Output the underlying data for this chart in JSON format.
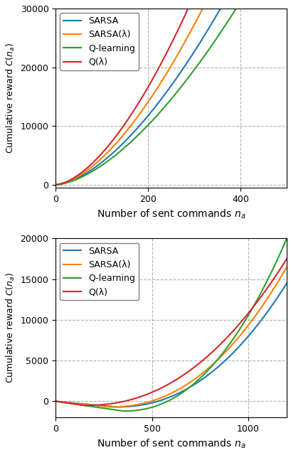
{
  "top": {
    "xlabel": "Number of sent commands $n_a$",
    "ylabel": "Cumulative reward $C(n_a)$",
    "xlim": [
      0,
      500
    ],
    "ylim": [
      -500,
      30000
    ],
    "yticks": [
      0,
      10000,
      20000,
      30000
    ],
    "xticks": [
      0,
      200,
      400
    ],
    "legend_labels": [
      "SARSA",
      "SARSA(λ)",
      "Q-learning",
      "Q(λ)"
    ],
    "colors": [
      "#1f77b4",
      "#ff7f0e",
      "#2ca02c",
      "#d62728"
    ],
    "x_end": 500,
    "top_sarsa": {
      "a": 2.2,
      "b": 1.62
    },
    "top_sarsa_lam": {
      "a": 2.5,
      "b": 1.63
    },
    "top_qlearn": {
      "a": 1.9,
      "b": 1.62
    },
    "top_qlam": {
      "a": 2.8,
      "b": 1.64
    }
  },
  "bottom": {
    "xlabel": "Number of sent commands $n_a$",
    "ylabel": "Cumulative reward $C(n_a)$",
    "xlim": [
      0,
      1200
    ],
    "ylim": [
      -2000,
      20000
    ],
    "yticks": [
      0,
      5000,
      10000,
      15000,
      20000
    ],
    "xticks": [
      0,
      500,
      1000
    ],
    "legend_labels": [
      "SARSA",
      "SARSA(λ)",
      "Q-learning",
      "Q(λ)"
    ],
    "colors": [
      "#1f77b4",
      "#ff7f0e",
      "#2ca02c",
      "#d62728"
    ],
    "x_end": 1200
  },
  "figsize": [
    4.1,
    6.4
  ],
  "dpi": 100
}
